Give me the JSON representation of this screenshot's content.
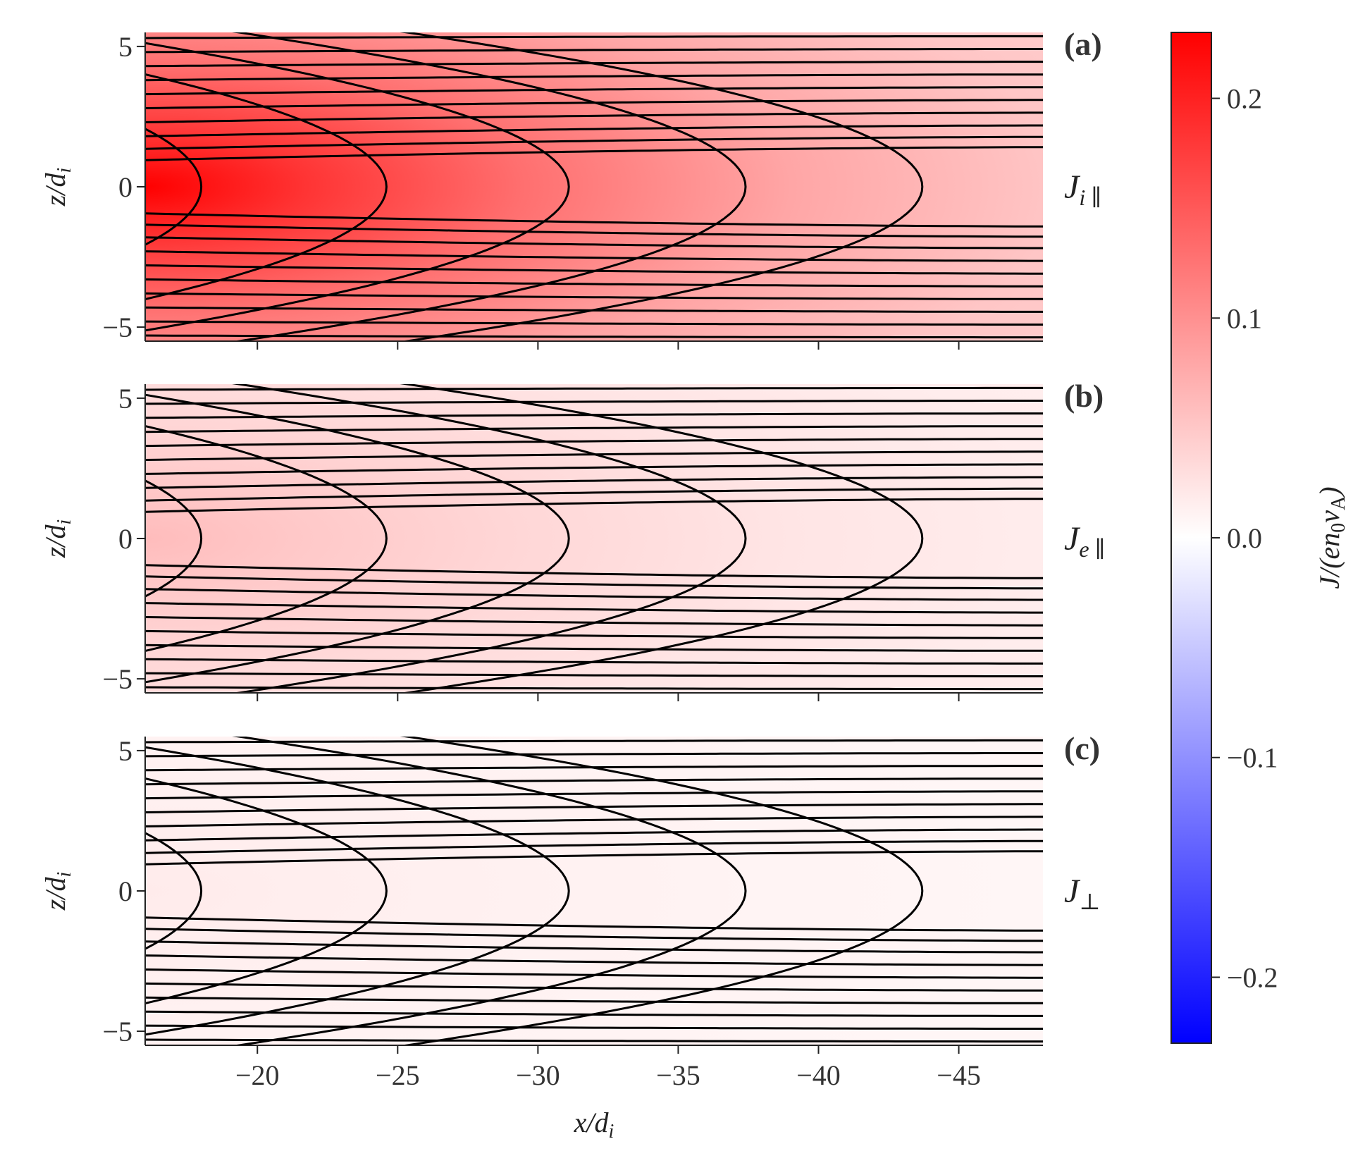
{
  "chart_data": {
    "type": "heatmap",
    "x_axis": {
      "label_text": "x/",
      "label_var": "d",
      "label_sub": "i",
      "lim": [
        -16,
        -48
      ],
      "ticks": [
        -20,
        -25,
        -30,
        -35,
        -40,
        -45
      ],
      "tick_labels": [
        "−20",
        "−25",
        "−30",
        "−35",
        "−40",
        "−45"
      ]
    },
    "y_axis": {
      "label_text": "z/",
      "label_var": "d",
      "label_sub": "i",
      "lim": [
        -5.5,
        5.5
      ],
      "ticks": [
        -5,
        0,
        5
      ],
      "tick_labels": [
        "−5",
        "0",
        "5"
      ]
    },
    "panels": [
      {
        "label": "(a)",
        "quantity": "J",
        "quantity_sub": "i ∥",
        "peak_value": 0.23,
        "edge_value": 0.045
      },
      {
        "label": "(b)",
        "quantity": "J",
        "quantity_sub": "e ∥",
        "peak_value": 0.06,
        "edge_value": 0.015
      },
      {
        "label": "(c)",
        "quantity": "J",
        "quantity_sub": "⊥",
        "peak_value": 0.018,
        "edge_value": 0.008
      }
    ],
    "contours": {
      "nose_x": [
        -18.0,
        -24.6,
        -31.1,
        -37.4,
        -43.7
      ],
      "description": "field lines, same in all panels"
    },
    "colorbar": {
      "label_text": "J/(en",
      "label_sub0": "0",
      "label_v": "v",
      "label_subA": "A",
      "label_close": ")",
      "lim": [
        -0.23,
        0.23
      ],
      "ticks": [
        0.2,
        0.1,
        0.0,
        -0.1,
        -0.2
      ],
      "tick_labels": [
        "0.2",
        "0.1",
        "0.0",
        "−0.1",
        "−0.2"
      ],
      "colormap": "bwr",
      "color_low": "#0000ff",
      "color_mid": "#ffffff",
      "color_high": "#ff0000"
    }
  }
}
